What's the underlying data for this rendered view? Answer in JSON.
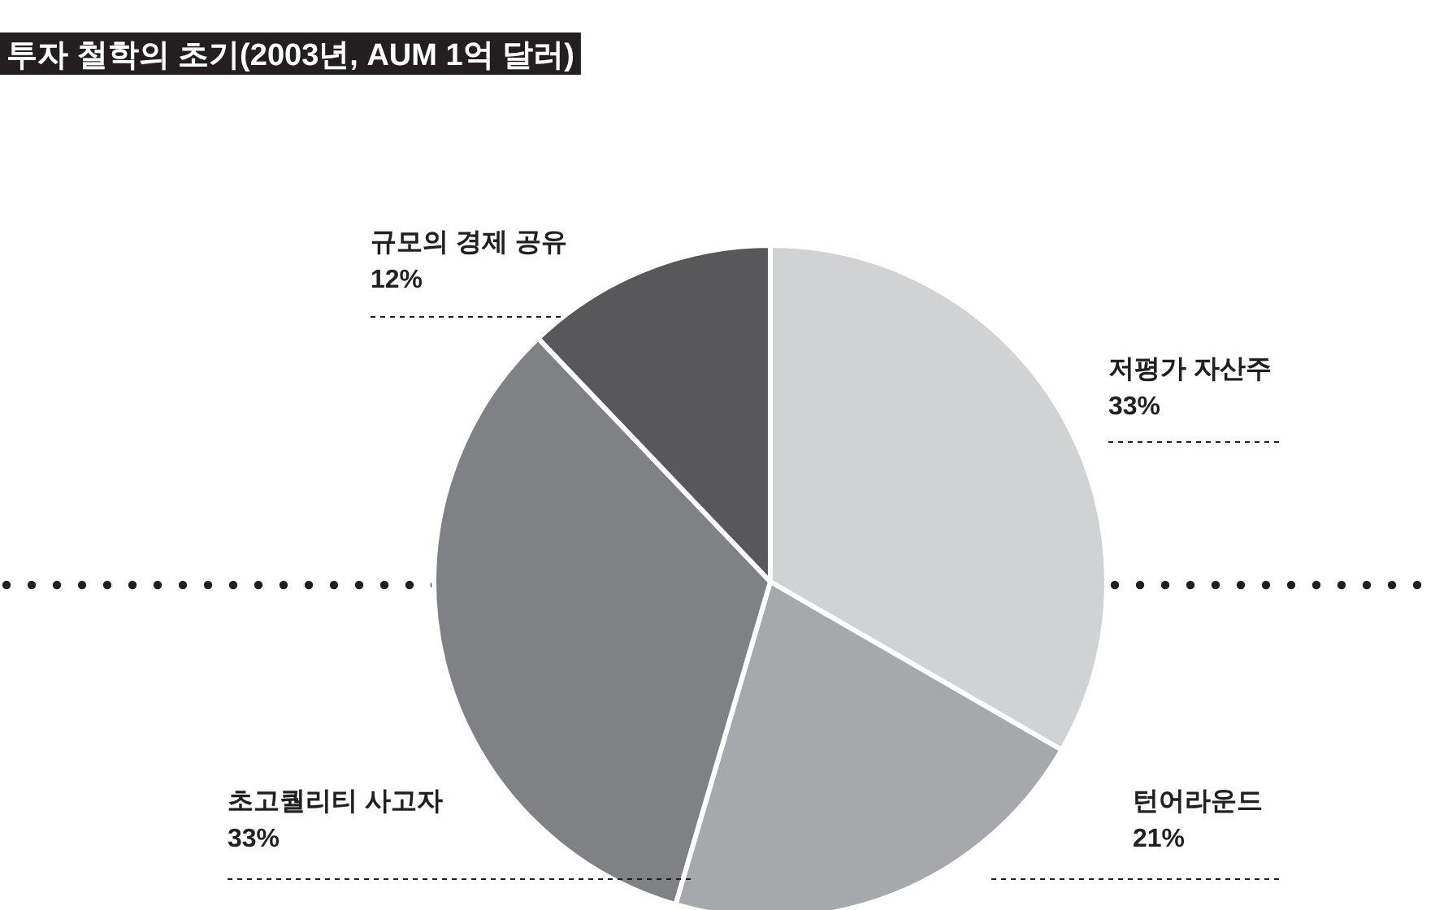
{
  "chart_data": {
    "type": "pie",
    "title": "투자 철학의 초기(2003년, AUM 1억 달러)",
    "categories": [
      "저평가 자산주",
      "턴어라운드",
      "초고퀄리티 사고자",
      "규모의 경제 공유"
    ],
    "values": [
      33,
      21,
      33,
      12
    ],
    "value_labels": [
      "33%",
      "21%",
      "33%",
      "12%"
    ],
    "colors": [
      "#d1d2d4",
      "#a7a8ab",
      "#808184",
      "#58585a"
    ]
  }
}
